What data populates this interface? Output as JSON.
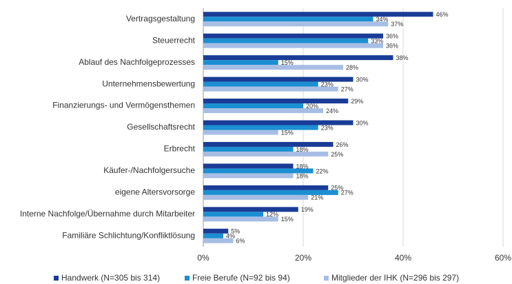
{
  "chart_data": {
    "type": "bar",
    "orientation": "horizontal",
    "categories": [
      "Vertragsgestaltung",
      "Steuerrecht",
      "Ablauf des Nachfolgeprozesses",
      "Unternehmensbewertung",
      "Finanzierungs- und Vermögensthemen",
      "Gesellschaftsrecht",
      "Erbrecht",
      "Käufer-/Nachfolgersuche",
      "eigene Altersvorsorge",
      "Interne Nachfolge/Übernahme durch Mitarbeiter",
      "Familiäre Schlichtung/Konfliktlösung"
    ],
    "series": [
      {
        "name": "Handwerk (N=305 bis 314)",
        "color": "#1a3c96",
        "values": [
          46,
          36,
          38,
          30,
          29,
          30,
          26,
          18,
          25,
          19,
          5
        ],
        "value_labels": [
          "46%",
          "36%",
          "38%",
          "30%",
          "29%",
          "30%",
          "26%",
          "18%",
          "25%",
          "19%",
          "5%"
        ]
      },
      {
        "name": "Freie Berufe (N=92 bis 94)",
        "color": "#1b8fd1",
        "values": [
          34,
          33,
          15,
          23,
          20,
          23,
          18,
          22,
          27,
          12,
          4
        ],
        "value_labels": [
          "34%",
          "33%",
          "15%",
          "23%",
          "20%",
          "23%",
          "18%",
          "22%",
          "27%",
          "12%",
          "4%"
        ]
      },
      {
        "name": "Mitglieder der IHK (N=296 bis 297)",
        "color": "#a8bde4",
        "values": [
          37,
          36,
          28,
          27,
          24,
          15,
          25,
          18,
          21,
          15,
          6
        ],
        "value_labels": [
          "37%",
          "36%",
          "28%",
          "27%",
          "24%",
          "15%",
          "25%",
          "18%",
          "21%",
          "15%",
          "6%"
        ]
      }
    ],
    "xlim": [
      0,
      60
    ],
    "xticks": [
      {
        "value": 0,
        "label": "0%"
      },
      {
        "value": 20,
        "label": "20%"
      },
      {
        "value": 40,
        "label": "40%"
      },
      {
        "value": 60,
        "label": "60%"
      }
    ],
    "grid": true,
    "legend": "bottom"
  }
}
